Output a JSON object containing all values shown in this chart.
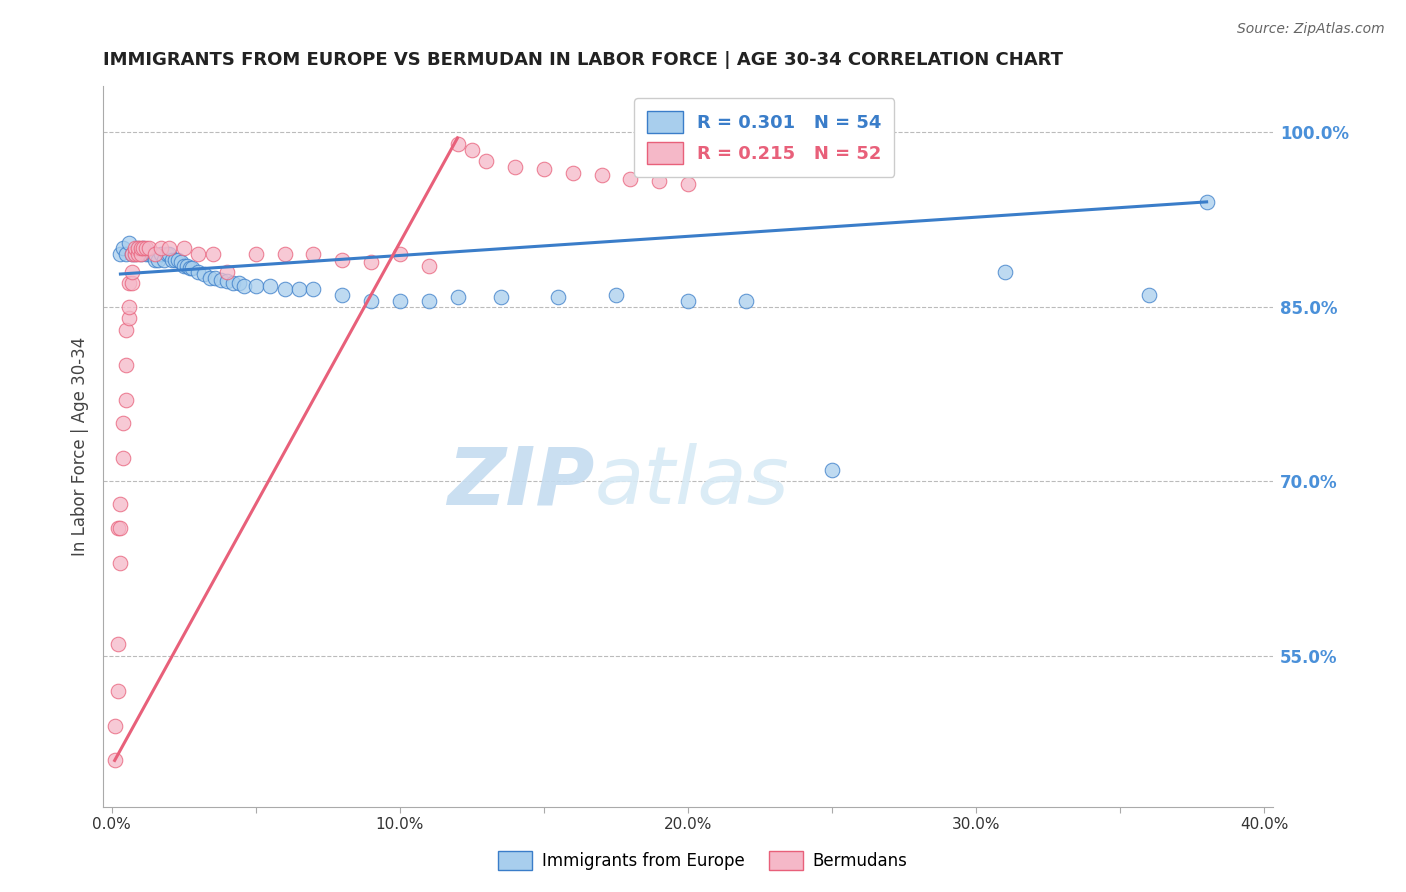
{
  "title": "IMMIGRANTS FROM EUROPE VS BERMUDAN IN LABOR FORCE | AGE 30-34 CORRELATION CHART",
  "source": "Source: ZipAtlas.com",
  "ylabel": "In Labor Force | Age 30-34",
  "xlim": [
    -0.003,
    0.403
  ],
  "ylim": [
    0.42,
    1.04
  ],
  "xticks": [
    0.0,
    0.05,
    0.1,
    0.15,
    0.2,
    0.25,
    0.3,
    0.35,
    0.4
  ],
  "xtick_labels": [
    "0.0%",
    "",
    "10.0%",
    "",
    "20.0%",
    "",
    "30.0%",
    "",
    "40.0%"
  ],
  "yticks_right": [
    0.55,
    0.7,
    0.85,
    1.0
  ],
  "ytick_labels_right": [
    "55.0%",
    "70.0%",
    "85.0%",
    "100.0%"
  ],
  "blue_R": 0.301,
  "blue_N": 54,
  "pink_R": 0.215,
  "pink_N": 52,
  "blue_color": "#A8CEED",
  "pink_color": "#F5B8C8",
  "blue_line_color": "#3A7DC9",
  "pink_line_color": "#E8607A",
  "right_axis_color": "#4A90D9",
  "watermark_zip": "ZIP",
  "watermark_atlas": "atlas",
  "blue_x": [
    0.003,
    0.004,
    0.005,
    0.006,
    0.007,
    0.008,
    0.009,
    0.01,
    0.011,
    0.012,
    0.013,
    0.014,
    0.015,
    0.016,
    0.017,
    0.018,
    0.019,
    0.02,
    0.021,
    0.022,
    0.023,
    0.024,
    0.025,
    0.026,
    0.027,
    0.028,
    0.03,
    0.032,
    0.034,
    0.036,
    0.038,
    0.04,
    0.042,
    0.044,
    0.046,
    0.05,
    0.055,
    0.06,
    0.065,
    0.07,
    0.08,
    0.09,
    0.1,
    0.11,
    0.12,
    0.135,
    0.155,
    0.175,
    0.2,
    0.22,
    0.25,
    0.31,
    0.36,
    0.38
  ],
  "blue_y": [
    0.895,
    0.9,
    0.895,
    0.905,
    0.895,
    0.895,
    0.9,
    0.895,
    0.9,
    0.895,
    0.895,
    0.895,
    0.89,
    0.89,
    0.895,
    0.89,
    0.895,
    0.895,
    0.89,
    0.89,
    0.89,
    0.888,
    0.885,
    0.885,
    0.883,
    0.883,
    0.88,
    0.878,
    0.875,
    0.875,
    0.873,
    0.872,
    0.87,
    0.87,
    0.868,
    0.868,
    0.868,
    0.865,
    0.865,
    0.865,
    0.86,
    0.855,
    0.855,
    0.855,
    0.858,
    0.858,
    0.858,
    0.86,
    0.855,
    0.855,
    0.71,
    0.88,
    0.86,
    0.94
  ],
  "pink_x": [
    0.001,
    0.001,
    0.002,
    0.002,
    0.002,
    0.003,
    0.003,
    0.003,
    0.004,
    0.004,
    0.005,
    0.005,
    0.005,
    0.006,
    0.006,
    0.006,
    0.007,
    0.007,
    0.007,
    0.008,
    0.008,
    0.009,
    0.009,
    0.01,
    0.01,
    0.011,
    0.012,
    0.013,
    0.015,
    0.017,
    0.02,
    0.025,
    0.03,
    0.035,
    0.04,
    0.05,
    0.06,
    0.07,
    0.08,
    0.09,
    0.1,
    0.11,
    0.12,
    0.125,
    0.13,
    0.14,
    0.15,
    0.16,
    0.17,
    0.18,
    0.19,
    0.2
  ],
  "pink_y": [
    0.49,
    0.46,
    0.56,
    0.52,
    0.66,
    0.63,
    0.66,
    0.68,
    0.72,
    0.75,
    0.77,
    0.8,
    0.83,
    0.84,
    0.85,
    0.87,
    0.87,
    0.88,
    0.895,
    0.895,
    0.9,
    0.895,
    0.9,
    0.895,
    0.9,
    0.9,
    0.9,
    0.9,
    0.895,
    0.9,
    0.9,
    0.9,
    0.895,
    0.895,
    0.88,
    0.895,
    0.895,
    0.895,
    0.89,
    0.888,
    0.895,
    0.885,
    0.99,
    0.985,
    0.975,
    0.97,
    0.968,
    0.965,
    0.963,
    0.96,
    0.958,
    0.955
  ],
  "blue_trend_x": [
    0.003,
    0.38
  ],
  "blue_trend_y": [
    0.878,
    0.94
  ],
  "pink_trend_x": [
    0.001,
    0.12
  ],
  "pink_trend_y": [
    0.46,
    0.995
  ]
}
